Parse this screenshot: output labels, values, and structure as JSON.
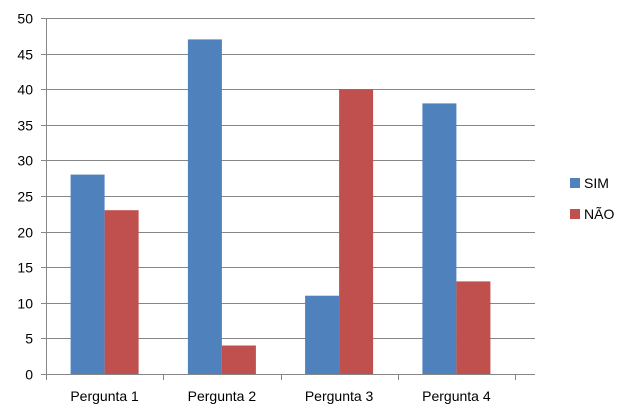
{
  "chart_data": {
    "type": "bar",
    "categories": [
      "Pergunta 1",
      "Pergunta 2",
      "Pergunta 3",
      "Pergunta 4"
    ],
    "series": [
      {
        "name": "SIM",
        "values": [
          28,
          47,
          11,
          38
        ],
        "color": "#4F81BD"
      },
      {
        "name": "NÃO",
        "values": [
          23,
          4,
          40,
          13
        ],
        "color": "#C0504D"
      }
    ],
    "ylim": [
      0,
      50
    ],
    "yticks": [
      0,
      5,
      10,
      15,
      20,
      25,
      30,
      35,
      40,
      45,
      50
    ],
    "grid": true,
    "legend": "right"
  }
}
